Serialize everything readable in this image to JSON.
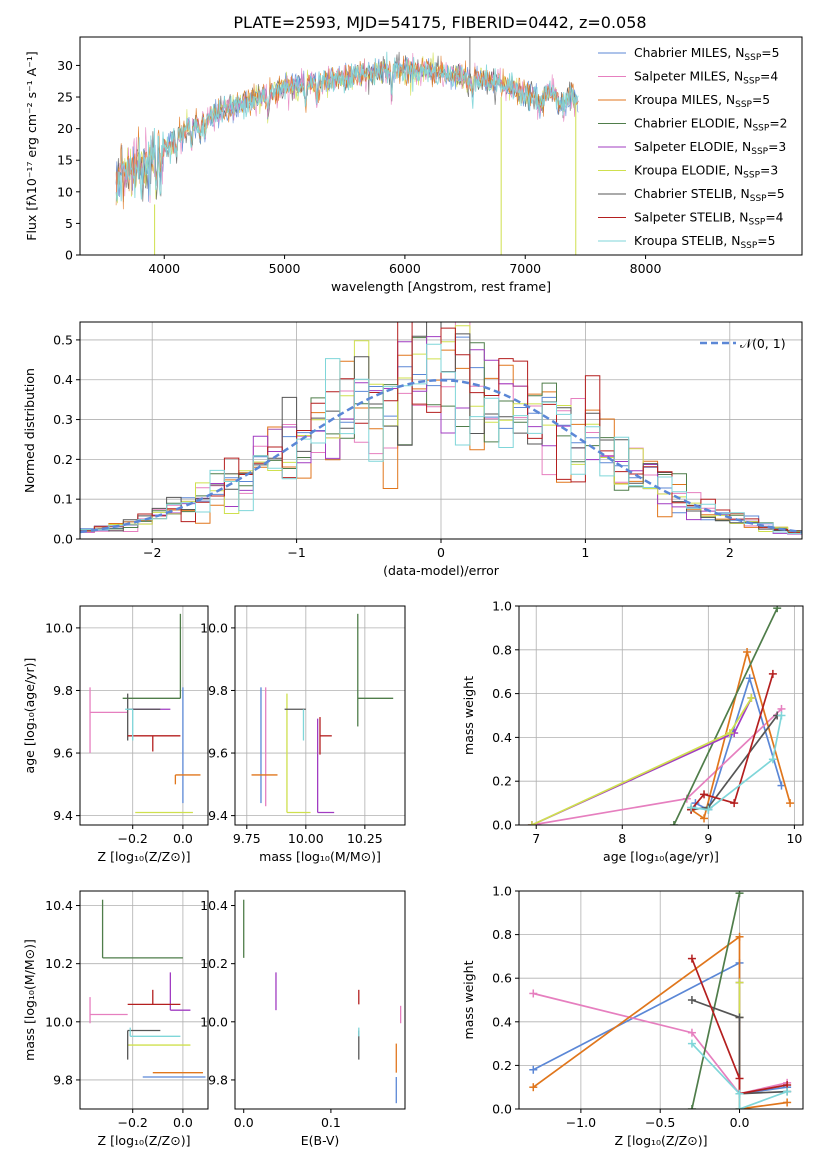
{
  "title": "PLATE=2593, MJD=54175, FIBERID=0442, z=0.058",
  "colors": {
    "Chabrier MILES": "#5b87d6",
    "Salpeter MILES": "#e67fbf",
    "Kroupa MILES": "#e0761c",
    "Chabrier ELODIE": "#4f7d4a",
    "Salpeter ELODIE": "#a13cc2",
    "Kroupa ELODIE": "#cfe04e",
    "Chabrier STELIB": "#555555",
    "Salpeter STELIB": "#b41f1f",
    "Kroupa STELIB": "#7fd6d9"
  },
  "chart_data": [
    {
      "id": "spectrum",
      "type": "line",
      "xlabel": "wavelength [Angstrom, rest frame]",
      "ylabel": "Flux [fλ10⁻¹⁷ erg cm⁻² s⁻¹ A⁻¹]",
      "xlim": [
        3300,
        9300
      ],
      "ylim": [
        0,
        34.5
      ],
      "xticks": [
        4000,
        5000,
        6000,
        7000,
        8000
      ],
      "yticks": [
        0,
        5,
        10,
        15,
        20,
        25,
        30
      ],
      "legend_position": "right",
      "legend": [
        {
          "series": "Chabrier MILES",
          "text": "Chabrier MILES, N",
          "sub": "SSP",
          "tail": "=5"
        },
        {
          "series": "Salpeter MILES",
          "text": "Salpeter MILES, N",
          "sub": "SSP",
          "tail": "=4"
        },
        {
          "series": "Kroupa MILES",
          "text": "Kroupa MILES, N",
          "sub": "SSP",
          "tail": "=5"
        },
        {
          "series": "Chabrier ELODIE",
          "text": "Chabrier ELODIE, N",
          "sub": "SSP",
          "tail": "=2"
        },
        {
          "series": "Salpeter ELODIE",
          "text": "Salpeter ELODIE, N",
          "sub": "SSP",
          "tail": "=3"
        },
        {
          "series": "Kroupa ELODIE",
          "text": "Kroupa ELODIE, N",
          "sub": "SSP",
          "tail": "=3"
        },
        {
          "series": "Chabrier STELIB",
          "text": "Chabrier STELIB, N",
          "sub": "SSP",
          "tail": "=5"
        },
        {
          "series": "Salpeter STELIB",
          "text": "Salpeter STELIB, N",
          "sub": "SSP",
          "tail": "=4"
        },
        {
          "series": "Kroupa STELIB",
          "text": "Kroupa STELIB, N",
          "sub": "SSP",
          "tail": "=5"
        }
      ],
      "continuum_x": [
        3600,
        3700,
        3800,
        3900,
        4000,
        4200,
        4500,
        4800,
        5000,
        5300,
        5600,
        5900,
        6200,
        6500,
        6800,
        7100,
        7400
      ],
      "continuum_y": [
        12,
        13.5,
        14,
        15,
        17,
        20,
        23,
        25,
        26.5,
        27.5,
        28.5,
        29.5,
        29,
        28,
        27,
        25,
        24.5
      ]
    },
    {
      "id": "residuals",
      "type": "histogram",
      "xlabel": "(data-model)/error",
      "ylabel": "Normed distribution",
      "xlim": [
        -2.5,
        2.5
      ],
      "ylim": [
        0,
        0.545
      ],
      "xticks": [
        -2,
        -1,
        0,
        1,
        2
      ],
      "yticks": [
        0.0,
        0.1,
        0.2,
        0.3,
        0.4,
        0.5
      ],
      "grid": true,
      "legend_position": "top-right",
      "reference_label": "𝒩(0, 1)",
      "reference_color": "#5b87d6"
    },
    {
      "id": "age-vs-Z",
      "type": "errorbar",
      "xlabel": "Z [log₁₀(Z/Z⊙)]",
      "ylabel": "age  [log₁₀(age/yr)]",
      "xlim": [
        -0.41,
        0.1
      ],
      "ylim": [
        9.37,
        10.07
      ],
      "xticks": [
        -0.2,
        0.0
      ],
      "yticks": [
        9.4,
        9.6,
        9.8,
        10.0
      ],
      "grid": true,
      "points": [
        {
          "series": "Chabrier MILES",
          "x": 0.0,
          "xerr": [
            0.0,
            0.0
          ],
          "y": 9.53,
          "yerr": [
            0.09,
            0.28
          ]
        },
        {
          "series": "Salpeter MILES",
          "x": -0.37,
          "xerr": [
            0.0,
            0.15
          ],
          "y": 9.73,
          "yerr": [
            0.13,
            0.08
          ]
        },
        {
          "series": "Kroupa MILES",
          "x": -0.03,
          "xerr": [
            0.0,
            0.1
          ],
          "y": 9.53,
          "yerr": [
            0.03,
            0.0
          ]
        },
        {
          "series": "Chabrier ELODIE",
          "x": -0.01,
          "xerr": [
            0.23,
            0.0
          ],
          "y": 9.775,
          "yerr": [
            0.0,
            0.27
          ]
        },
        {
          "series": "Salpeter ELODIE",
          "x": -0.22,
          "xerr": [
            0.0,
            0.17
          ],
          "y": 9.74,
          "yerr": [
            0.0,
            0.0
          ]
        },
        {
          "series": "Kroupa ELODIE",
          "x": 0.0,
          "xerr": [
            0.19,
            0.04
          ],
          "y": 9.41,
          "yerr": [
            0.0,
            0.0
          ]
        },
        {
          "series": "Chabrier STELIB",
          "x": -0.22,
          "xerr": [
            0.0,
            0.13
          ],
          "y": 9.74,
          "yerr": [
            0.1,
            0.05
          ]
        },
        {
          "series": "Salpeter STELIB",
          "x": -0.12,
          "xerr": [
            0.1,
            0.11
          ],
          "y": 9.655,
          "yerr": [
            0.05,
            0.0
          ]
        },
        {
          "series": "Kroupa STELIB",
          "x": -0.2,
          "xerr": [
            0.03,
            0.0
          ],
          "y": 9.74,
          "yerr": [
            0.1,
            0.0
          ]
        }
      ]
    },
    {
      "id": "age-vs-mass",
      "type": "errorbar",
      "xlabel": "mass [log₁₀(M/M⊙)]",
      "ylabel": "",
      "xlim": [
        9.7,
        10.42
      ],
      "ylim": [
        9.37,
        10.07
      ],
      "xticks": [
        9.75,
        10.0,
        10.25
      ],
      "yticks": [
        9.4,
        9.6,
        9.8,
        10.0
      ],
      "grid": true,
      "points": [
        {
          "series": "Chabrier MILES",
          "x": 9.81,
          "xerr": [
            0.0,
            0.0
          ],
          "y": 9.53,
          "yerr": [
            0.09,
            0.28
          ]
        },
        {
          "series": "Salpeter MILES",
          "x": 9.83,
          "xerr": [
            0.0,
            0.0
          ],
          "y": 9.53,
          "yerr": [
            0.1,
            0.28
          ]
        },
        {
          "series": "Kroupa MILES",
          "x": 9.83,
          "xerr": [
            0.06,
            0.05
          ],
          "y": 9.53,
          "yerr": [
            0.0,
            0.0
          ]
        },
        {
          "series": "Chabrier ELODIE",
          "x": 10.22,
          "xerr": [
            0.0,
            0.15
          ],
          "y": 9.775,
          "yerr": [
            0.09,
            0.27
          ]
        },
        {
          "series": "Salpeter ELODIE",
          "x": 10.05,
          "xerr": [
            0.0,
            0.07
          ],
          "y": 9.41,
          "yerr": [
            0.0,
            0.3
          ]
        },
        {
          "series": "Kroupa ELODIE",
          "x": 9.92,
          "xerr": [
            0.0,
            0.1
          ],
          "y": 9.41,
          "yerr": [
            0.0,
            0.38
          ]
        },
        {
          "series": "Chabrier STELIB",
          "x": 9.97,
          "xerr": [
            0.06,
            0.03
          ],
          "y": 9.74,
          "yerr": [
            0.0,
            0.0
          ]
        },
        {
          "series": "Salpeter STELIB",
          "x": 10.06,
          "xerr": [
            0.0,
            0.05
          ],
          "y": 9.655,
          "yerr": [
            0.06,
            0.06
          ]
        },
        {
          "series": "Kroupa STELIB",
          "x": 9.99,
          "xerr": [
            0.0,
            0.0
          ],
          "y": 9.74,
          "yerr": [
            0.1,
            0.0
          ]
        }
      ]
    },
    {
      "id": "mass-weight-vs-age",
      "type": "line",
      "xlabel": "age  [log₁₀(age/yr)]",
      "ylabel": "mass weight",
      "xlim": [
        6.8,
        10.1
      ],
      "ylim": [
        0,
        1.0
      ],
      "xticks": [
        7,
        8,
        9,
        10
      ],
      "yticks": [
        0.0,
        0.2,
        0.4,
        0.6,
        0.8,
        1.0
      ],
      "grid": true,
      "series": [
        {
          "name": "Chabrier MILES",
          "points": [
            [
              8.85,
              0.1
            ],
            [
              9.0,
              0.07
            ],
            [
              9.48,
              0.67
            ],
            [
              9.85,
              0.18
            ]
          ]
        },
        {
          "name": "Salpeter MILES",
          "points": [
            [
              6.95,
              0.0
            ],
            [
              8.75,
              0.12
            ],
            [
              9.85,
              0.53
            ]
          ]
        },
        {
          "name": "Kroupa MILES",
          "points": [
            [
              8.8,
              0.07
            ],
            [
              8.95,
              0.03
            ],
            [
              9.45,
              0.79
            ],
            [
              9.95,
              0.1
            ]
          ]
        },
        {
          "name": "Chabrier ELODIE",
          "points": [
            [
              8.6,
              0.0
            ],
            [
              9.8,
              0.99
            ]
          ]
        },
        {
          "name": "Salpeter ELODIE",
          "points": [
            [
              6.95,
              0.0
            ],
            [
              9.3,
              0.42
            ],
            [
              9.5,
              0.58
            ]
          ]
        },
        {
          "name": "Kroupa ELODIE",
          "points": [
            [
              6.95,
              0.0
            ],
            [
              9.25,
              0.42
            ],
            [
              9.5,
              0.58
            ]
          ]
        },
        {
          "name": "Chabrier STELIB",
          "points": [
            [
              8.8,
              0.07
            ],
            [
              9.0,
              0.08
            ],
            [
              9.8,
              0.5
            ]
          ]
        },
        {
          "name": "Salpeter STELIB",
          "points": [
            [
              8.8,
              0.07
            ],
            [
              8.95,
              0.14
            ],
            [
              9.3,
              0.1
            ],
            [
              9.75,
              0.69
            ]
          ]
        },
        {
          "name": "Kroupa STELIB",
          "points": [
            [
              8.8,
              0.08
            ],
            [
              9.0,
              0.07
            ],
            [
              9.75,
              0.3
            ],
            [
              9.85,
              0.5
            ]
          ]
        }
      ]
    },
    {
      "id": "mass-vs-Z",
      "type": "errorbar",
      "xlabel": "Z [log₁₀(Z/Z⊙)]",
      "ylabel": "mass [log₁₀(M/M⊙)]",
      "xlim": [
        -0.41,
        0.1
      ],
      "ylim": [
        9.7,
        10.45
      ],
      "xticks": [
        -0.2,
        0.0
      ],
      "yticks": [
        9.8,
        10.0,
        10.2,
        10.4
      ],
      "grid": true,
      "points": [
        {
          "series": "Chabrier MILES",
          "x": -0.16,
          "xerr": [
            0.0,
            0.25
          ],
          "y": 9.81,
          "yerr": [
            0.0,
            0.0
          ]
        },
        {
          "series": "Salpeter MILES",
          "x": -0.37,
          "xerr": [
            0.0,
            0.15
          ],
          "y": 10.025,
          "yerr": [
            0.03,
            0.06
          ]
        },
        {
          "series": "Kroupa MILES",
          "x": -0.12,
          "xerr": [
            0.0,
            0.2
          ],
          "y": 9.825,
          "yerr": [
            0.0,
            0.0
          ]
        },
        {
          "series": "Chabrier ELODIE",
          "x": -0.32,
          "xerr": [
            0.0,
            0.32
          ],
          "y": 10.22,
          "yerr": [
            0.0,
            0.2
          ]
        },
        {
          "series": "Salpeter ELODIE",
          "x": -0.05,
          "xerr": [
            0.0,
            0.08
          ],
          "y": 10.04,
          "yerr": [
            0.0,
            0.13
          ]
        },
        {
          "series": "Kroupa ELODIE",
          "x": -0.22,
          "xerr": [
            0.0,
            0.25
          ],
          "y": 9.92,
          "yerr": [
            0.0,
            0.0
          ]
        },
        {
          "series": "Chabrier STELIB",
          "x": -0.22,
          "xerr": [
            0.0,
            0.13
          ],
          "y": 9.97,
          "yerr": [
            0.1,
            0.0
          ]
        },
        {
          "series": "Salpeter STELIB",
          "x": -0.12,
          "xerr": [
            0.1,
            0.11
          ],
          "y": 10.06,
          "yerr": [
            0.0,
            0.05
          ]
        },
        {
          "series": "Kroupa STELIB",
          "x": -0.21,
          "xerr": [
            0.0,
            0.2
          ],
          "y": 9.95,
          "yerr": [
            0.0,
            0.03
          ]
        }
      ]
    },
    {
      "id": "mass-vs-ebv",
      "type": "errorbar",
      "xlabel": "E(B-V)",
      "ylabel": "",
      "xlim": [
        -0.01,
        0.185
      ],
      "ylim": [
        9.7,
        10.45
      ],
      "xticks": [
        0.0,
        0.1
      ],
      "yticks": [
        9.8,
        10.0,
        10.2,
        10.4
      ],
      "grid": false,
      "points": [
        {
          "series": "Chabrier MILES",
          "x": 0.175,
          "xerr": [
            0.0,
            0.0
          ],
          "y": 9.81,
          "yerr": [
            0.09,
            0.0
          ]
        },
        {
          "series": "Salpeter MILES",
          "x": 0.18,
          "xerr": [
            0.0,
            0.0
          ],
          "y": 10.025,
          "yerr": [
            0.03,
            0.03
          ]
        },
        {
          "series": "Kroupa MILES",
          "x": 0.175,
          "xerr": [
            0.0,
            0.0
          ],
          "y": 9.825,
          "yerr": [
            0.0,
            0.1
          ]
        },
        {
          "series": "Chabrier ELODIE",
          "x": 0.0,
          "xerr": [
            0.0,
            0.0
          ],
          "y": 10.22,
          "yerr": [
            0.0,
            0.2
          ]
        },
        {
          "series": "Salpeter ELODIE",
          "x": 0.037,
          "xerr": [
            0.0,
            0.0
          ],
          "y": 10.04,
          "yerr": [
            0.0,
            0.13
          ]
        },
        {
          "series": "Kroupa ELODIE",
          "x": 0.037,
          "xerr": [
            0.0,
            0.0
          ],
          "y": 9.92,
          "yerr": [
            0.0,
            0.0
          ]
        },
        {
          "series": "Chabrier STELIB",
          "x": 0.132,
          "xerr": [
            0.0,
            0.0
          ],
          "y": 9.97,
          "yerr": [
            0.1,
            0.0
          ]
        },
        {
          "series": "Salpeter STELIB",
          "x": 0.132,
          "xerr": [
            0.0,
            0.0
          ],
          "y": 10.06,
          "yerr": [
            0.0,
            0.05
          ]
        },
        {
          "series": "Kroupa STELIB",
          "x": 0.132,
          "xerr": [
            0.0,
            0.0
          ],
          "y": 9.95,
          "yerr": [
            0.0,
            0.03
          ]
        }
      ]
    },
    {
      "id": "mass-weight-vs-Z",
      "type": "line",
      "xlabel": "Z [log₁₀(Z/Z⊙)]",
      "ylabel": "mass weight",
      "xlim": [
        -1.39,
        0.4
      ],
      "ylim": [
        0,
        1.0
      ],
      "xticks": [
        -1.0,
        -0.5,
        0.0
      ],
      "yticks": [
        0.0,
        0.2,
        0.4,
        0.6,
        0.8,
        1.0
      ],
      "grid": true,
      "series": [
        {
          "name": "Chabrier MILES",
          "points": [
            [
              -1.3,
              0.18
            ],
            [
              0.0,
              0.67
            ],
            [
              0.0,
              0.07
            ],
            [
              0.3,
              0.1
            ]
          ]
        },
        {
          "name": "Salpeter MILES",
          "points": [
            [
              -1.3,
              0.53
            ],
            [
              -0.3,
              0.35
            ],
            [
              0.0,
              0.07
            ],
            [
              0.3,
              0.12
            ]
          ]
        },
        {
          "name": "Kroupa MILES",
          "points": [
            [
              -1.3,
              0.1
            ],
            [
              0.0,
              0.79
            ],
            [
              0.0,
              0.0
            ],
            [
              0.3,
              0.03
            ]
          ]
        },
        {
          "name": "Chabrier ELODIE",
          "points": [
            [
              -0.3,
              0.0
            ],
            [
              0.0,
              0.99
            ]
          ]
        },
        {
          "name": "Salpeter ELODIE",
          "points": [
            [
              0.0,
              0.42
            ],
            [
              0.0,
              0.58
            ]
          ]
        },
        {
          "name": "Kroupa ELODIE",
          "points": [
            [
              0.0,
              0.42
            ],
            [
              0.0,
              0.58
            ]
          ]
        },
        {
          "name": "Chabrier STELIB",
          "points": [
            [
              -0.3,
              0.5
            ],
            [
              0.0,
              0.42
            ],
            [
              0.0,
              0.07
            ],
            [
              0.3,
              0.08
            ]
          ]
        },
        {
          "name": "Salpeter STELIB",
          "points": [
            [
              -0.3,
              0.69
            ],
            [
              0.0,
              0.14
            ],
            [
              0.0,
              0.07
            ],
            [
              0.3,
              0.11
            ]
          ]
        },
        {
          "name": "Kroupa STELIB",
          "points": [
            [
              -0.3,
              0.3
            ],
            [
              0.0,
              0.07
            ],
            [
              0.0,
              0.0
            ],
            [
              0.3,
              0.08
            ]
          ]
        }
      ]
    }
  ]
}
